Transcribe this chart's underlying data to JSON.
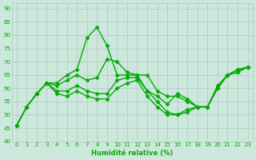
{
  "background_color": "#cce8dc",
  "grid_color": "#aaccbb",
  "line_color": "#00aa00",
  "marker": "D",
  "markersize": 2.5,
  "linewidth": 1.0,
  "xlabel": "Humidité relative (%)",
  "xlabel_color": "#00aa00",
  "ylim": [
    40,
    92
  ],
  "yticks": [
    40,
    45,
    50,
    55,
    60,
    65,
    70,
    75,
    80,
    85,
    90
  ],
  "xlim": [
    -0.5,
    23.5
  ],
  "xticks": [
    0,
    1,
    2,
    3,
    4,
    5,
    6,
    7,
    8,
    9,
    10,
    11,
    12,
    13,
    14,
    15,
    16,
    17,
    18,
    19,
    20,
    21,
    22,
    23
  ],
  "series": [
    [
      46,
      53,
      58,
      62,
      62,
      65,
      67,
      79,
      83,
      76,
      65,
      65,
      65,
      65,
      59,
      57,
      57,
      55,
      53,
      53,
      61,
      65,
      67,
      68
    ],
    [
      46,
      53,
      58,
      62,
      61,
      63,
      65,
      63,
      64,
      71,
      70,
      66,
      65,
      59,
      57,
      54,
      58,
      56,
      53,
      53,
      60,
      65,
      66,
      68
    ],
    [
      46,
      53,
      58,
      62,
      59,
      59,
      61,
      59,
      58,
      58,
      63,
      64,
      64,
      59,
      55,
      51,
      50,
      52,
      53,
      53,
      60,
      65,
      67,
      68
    ],
    [
      46,
      53,
      58,
      62,
      58,
      57,
      59,
      57,
      56,
      56,
      60,
      62,
      63,
      57,
      53,
      50,
      50,
      51,
      53,
      53,
      60,
      65,
      66,
      68
    ]
  ]
}
